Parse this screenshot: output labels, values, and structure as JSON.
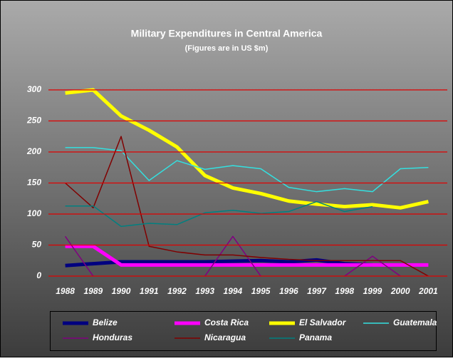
{
  "chart_data": {
    "type": "line",
    "title": "Military Expenditures in Central America",
    "subtitle": "(Figures are in US $m)",
    "categories": [
      "1988",
      "1989",
      "1990",
      "1991",
      "1992",
      "1993",
      "1994",
      "1995",
      "1996",
      "1997",
      "1998",
      "1999",
      "2000",
      "2001"
    ],
    "ylim": [
      0,
      300
    ],
    "yticks": [
      0,
      50,
      100,
      150,
      200,
      250,
      300
    ],
    "grid": true,
    "grid_color": "#e00000",
    "legend": "bottom",
    "series": [
      {
        "name": "Belize",
        "color": "#000080",
        "width": 5,
        "values": [
          17,
          20,
          23,
          23,
          23,
          23,
          24,
          25,
          23,
          26,
          20,
          18,
          null,
          null
        ]
      },
      {
        "name": "Costa Rica",
        "color": "#ff00ff",
        "width": 5,
        "values": [
          48,
          48,
          18,
          18,
          18,
          18,
          18,
          18,
          18,
          18,
          18,
          18,
          18,
          18
        ]
      },
      {
        "name": "El Salvador",
        "color": "#ffff00",
        "width": 5,
        "values": [
          295,
          300,
          258,
          235,
          208,
          162,
          142,
          133,
          121,
          116,
          112,
          115,
          110,
          120
        ]
      },
      {
        "name": "Guatemala",
        "color": "#33e0e0",
        "width": 1.5,
        "values": [
          207,
          207,
          202,
          154,
          186,
          172,
          178,
          173,
          143,
          136,
          141,
          136,
          173,
          175
        ]
      },
      {
        "name": "Honduras",
        "color": "#800080",
        "width": 1.5,
        "values": [
          64,
          0,
          null,
          null,
          null,
          0,
          64,
          0,
          null,
          null,
          0,
          32,
          0,
          null
        ]
      },
      {
        "name": "Nicaragua",
        "color": "#800000",
        "width": 1.5,
        "values": [
          150,
          110,
          225,
          48,
          39,
          34,
          34,
          30,
          27,
          25,
          25,
          25,
          25,
          0
        ]
      },
      {
        "name": "Panama",
        "color": "#008080",
        "width": 1.5,
        "values": [
          113,
          113,
          80,
          85,
          83,
          102,
          106,
          101,
          104,
          120,
          104,
          112,
          null,
          null
        ]
      }
    ]
  }
}
